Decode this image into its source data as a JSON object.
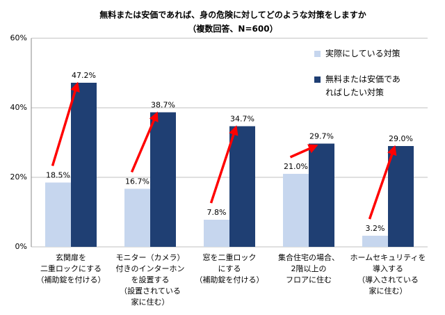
{
  "chart_data": {
    "type": "bar",
    "title": "無料または安価であれば、身の危険に対してどのような対策をしますか",
    "subtitle": "（複数回答、N=600）",
    "categories": [
      [
        "玄関扉を",
        "二重ロックにする",
        "（補助錠を付ける）"
      ],
      [
        "モニター（カメラ）",
        "付きのインターホン",
        "を設置する",
        "（設置されている",
        "家に住む）"
      ],
      [
        "窓を二重ロック",
        "にする",
        "（補助錠を付ける）"
      ],
      [
        "集合住宅の場合、",
        "2階以上の",
        "フロアに住む"
      ],
      [
        "ホームセキュリティを",
        "導入する",
        "（導入されている",
        "家に住む）"
      ]
    ],
    "series": [
      {
        "name": "実際にしている対策",
        "color": "#c6d6ee",
        "values": [
          18.5,
          16.7,
          7.8,
          21.0,
          3.2
        ],
        "value_labels": [
          "18.5%",
          "16.7%",
          "7.8%",
          "21.0%",
          "3.2%"
        ]
      },
      {
        "name": "無料または安価であればしたい対策",
        "color": "#1f3f73",
        "values": [
          47.2,
          38.7,
          34.7,
          29.7,
          29.0
        ],
        "value_labels": [
          "47.2%",
          "38.7%",
          "34.7%",
          "29.7%",
          "29.0%"
        ]
      }
    ],
    "ylim": [
      0,
      60
    ],
    "yticks": [
      {
        "value": 0,
        "label": "0%"
      },
      {
        "value": 20,
        "label": "20%"
      },
      {
        "value": 40,
        "label": "40%"
      },
      {
        "value": 60,
        "label": "60%"
      }
    ],
    "grid": true
  }
}
